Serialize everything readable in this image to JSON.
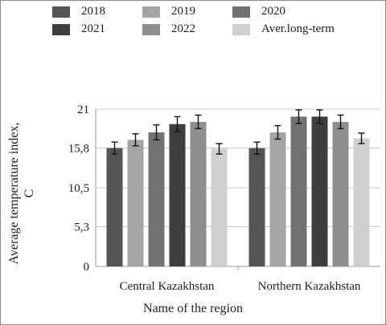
{
  "chart_data": {
    "type": "bar",
    "categories": [
      "Central Kazakhstan",
      "Northern Kazakhstan"
    ],
    "series": [
      {
        "name": "2018",
        "color": "#555555",
        "values": [
          15.8,
          15.8
        ],
        "error": [
          0.8,
          0.8
        ]
      },
      {
        "name": "2019",
        "color": "#a4a4a4",
        "values": [
          16.9,
          17.9
        ],
        "error": [
          0.8,
          0.9
        ]
      },
      {
        "name": "2020",
        "color": "#727272",
        "values": [
          17.9,
          20.0
        ],
        "error": [
          1.0,
          0.9
        ]
      },
      {
        "name": "2021",
        "color": "#3e3e3e",
        "values": [
          19.0,
          20.0
        ],
        "error": [
          1.0,
          0.9
        ]
      },
      {
        "name": "2022",
        "color": "#8e8e8e",
        "values": [
          19.3,
          19.3
        ],
        "error": [
          0.9,
          0.9
        ]
      },
      {
        "name": "Aver.long-term",
        "color": "#cfcfcf",
        "values": [
          15.7,
          17.1
        ],
        "error": [
          0.7,
          0.7
        ]
      }
    ],
    "ylabel": "Average temperature index, C",
    "xlabel": "Name of the region",
    "ylim": [
      0,
      21
    ],
    "yticks": [
      0,
      5.3,
      10.5,
      15.8,
      21
    ],
    "ytick_labels": [
      "0",
      "5,3",
      "10,5",
      "15,8",
      "21"
    ],
    "grid": true,
    "legend_position": "top"
  }
}
